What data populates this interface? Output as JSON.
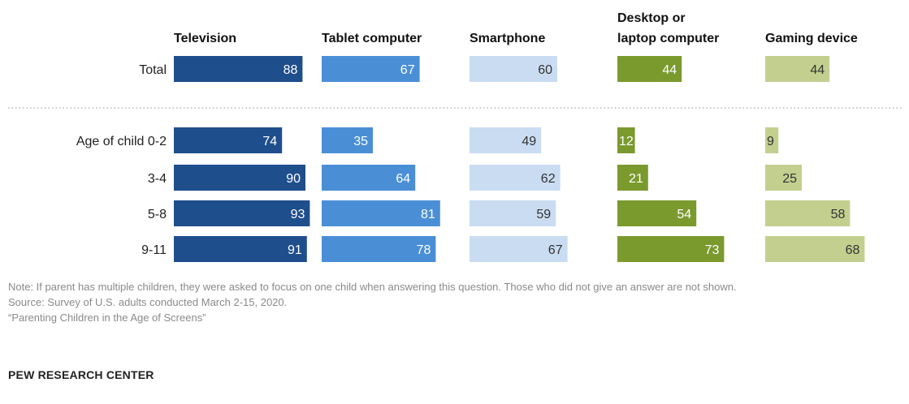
{
  "chart_data": {
    "type": "bar",
    "columns": [
      "Television",
      "Tablet computer",
      "Smartphone",
      "Desktop or laptop computer",
      "Gaming device"
    ],
    "column_colors": [
      "#1f4e8c",
      "#4a8fd6",
      "#c9dcf2",
      "#7b9a2e",
      "#c3cf8f"
    ],
    "value_text_colors": [
      "#ffffff",
      "#ffffff",
      "#333333",
      "#ffffff",
      "#333333"
    ],
    "rows": [
      {
        "label": "Total",
        "values": [
          88,
          67,
          60,
          44,
          44
        ]
      },
      {
        "label": "Age of child 0-2",
        "values": [
          74,
          35,
          49,
          12,
          9
        ]
      },
      {
        "label": "3-4",
        "values": [
          90,
          64,
          62,
          21,
          25
        ]
      },
      {
        "label": "5-8",
        "values": [
          93,
          81,
          59,
          54,
          58
        ]
      },
      {
        "label": "9-11",
        "values": [
          91,
          78,
          67,
          73,
          68
        ]
      }
    ],
    "xlim": [
      0,
      100
    ]
  },
  "notes": {
    "note": "Note: If parent has multiple children, they were asked to focus on one child when answering this question. Those who did not give an answer are not shown.",
    "source": "Source: Survey of U.S. adults conducted March 2-15, 2020.",
    "report": "“Parenting Children in the Age of Screens”"
  },
  "brand": "PEW RESEARCH CENTER"
}
